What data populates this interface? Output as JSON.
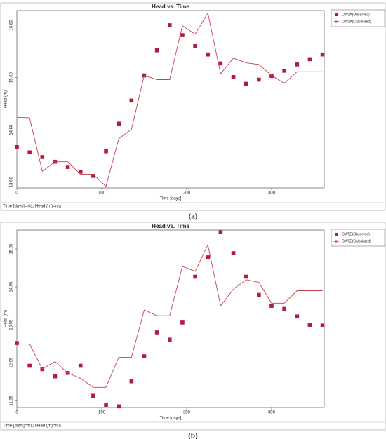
{
  "chart_data": [
    {
      "type": "scatter-line",
      "title": "Head vs. Time",
      "x_label": "Time [days]",
      "y_label": "Head (m)",
      "status": "Time [days]=n/a; Head (m)=n/a",
      "caption": "(a)",
      "x": [
        0,
        15,
        30,
        45,
        60,
        75,
        90,
        105,
        120,
        135,
        150,
        165,
        180,
        195,
        210,
        225,
        240,
        255,
        270,
        285,
        300,
        315,
        330,
        345,
        360
      ],
      "series": [
        {
          "name": "OW1A(Observed)",
          "color": "#b01c3c",
          "style": "markers",
          "values": [
            14.27,
            14.17,
            14.08,
            13.99,
            13.89,
            13.8,
            13.72,
            14.19,
            14.72,
            15.16,
            15.64,
            16.12,
            16.6,
            16.41,
            16.2,
            16.04,
            15.87,
            15.61,
            15.48,
            15.56,
            15.63,
            15.73,
            15.85,
            15.95,
            16.04
          ]
        },
        {
          "name": "OW1A(Calculated)",
          "color": "#c8404a",
          "style": "line",
          "values": [
            14.84,
            14.83,
            13.81,
            13.99,
            13.99,
            13.75,
            13.75,
            13.52,
            14.43,
            14.61,
            15.64,
            15.56,
            15.56,
            16.59,
            16.43,
            16.83,
            15.67,
            15.97,
            15.88,
            15.85,
            15.64,
            15.49,
            15.71,
            15.71,
            15.71
          ]
        }
      ],
      "xlim": [
        0,
        362
      ],
      "xticks": [
        0,
        100,
        200,
        300
      ],
      "ylim": [
        13.49,
        16.88
      ],
      "yticks": [
        {
          "value": 13.6,
          "label": "13.60"
        },
        {
          "value": 14.6,
          "label": "14.60"
        },
        {
          "value": 15.6,
          "label": "15.60"
        },
        {
          "value": 16.6,
          "label": "16.60"
        }
      ]
    },
    {
      "type": "scatter-line",
      "title": "Head vs. Time",
      "x_label": "Time [days]",
      "y_label": "Head (m)",
      "status": "Time [days]=n/a; Head (m)=n/a",
      "caption": "(b)",
      "x": [
        0,
        15,
        30,
        45,
        60,
        75,
        90,
        105,
        120,
        135,
        150,
        165,
        180,
        195,
        210,
        225,
        240,
        255,
        270,
        285,
        300,
        315,
        330,
        345,
        360
      ],
      "series": [
        {
          "name": "OW5E(Observed)",
          "color": "#b01c3c",
          "style": "markers",
          "values": [
            13.47,
            12.87,
            12.78,
            12.59,
            12.68,
            12.87,
            12.08,
            11.84,
            11.8,
            12.46,
            13.12,
            13.75,
            13.56,
            14.01,
            15.22,
            15.73,
            16.39,
            15.84,
            15.22,
            14.74,
            14.45,
            14.37,
            14.17,
            13.95,
            13.93
          ]
        },
        {
          "name": "OW5E(Calculated)",
          "color": "#c8404a",
          "style": "line",
          "values": [
            13.45,
            13.44,
            12.79,
            12.98,
            12.68,
            12.54,
            12.3,
            12.3,
            13.09,
            13.09,
            14.34,
            14.19,
            14.19,
            15.49,
            15.36,
            16.06,
            14.45,
            14.89,
            15.14,
            15.07,
            14.52,
            14.52,
            14.85,
            14.85,
            14.85
          ]
        }
      ],
      "xlim": [
        0,
        362
      ],
      "xticks": [
        0,
        100,
        200,
        300
      ],
      "ylim": [
        11.77,
        16.45
      ],
      "yticks": [
        {
          "value": 11.95,
          "label": "11.95"
        },
        {
          "value": 12.95,
          "label": "12.95"
        },
        {
          "value": 13.95,
          "label": "13.95"
        },
        {
          "value": 14.95,
          "label": "14.95"
        },
        {
          "value": 15.95,
          "label": "15.95"
        }
      ]
    }
  ]
}
